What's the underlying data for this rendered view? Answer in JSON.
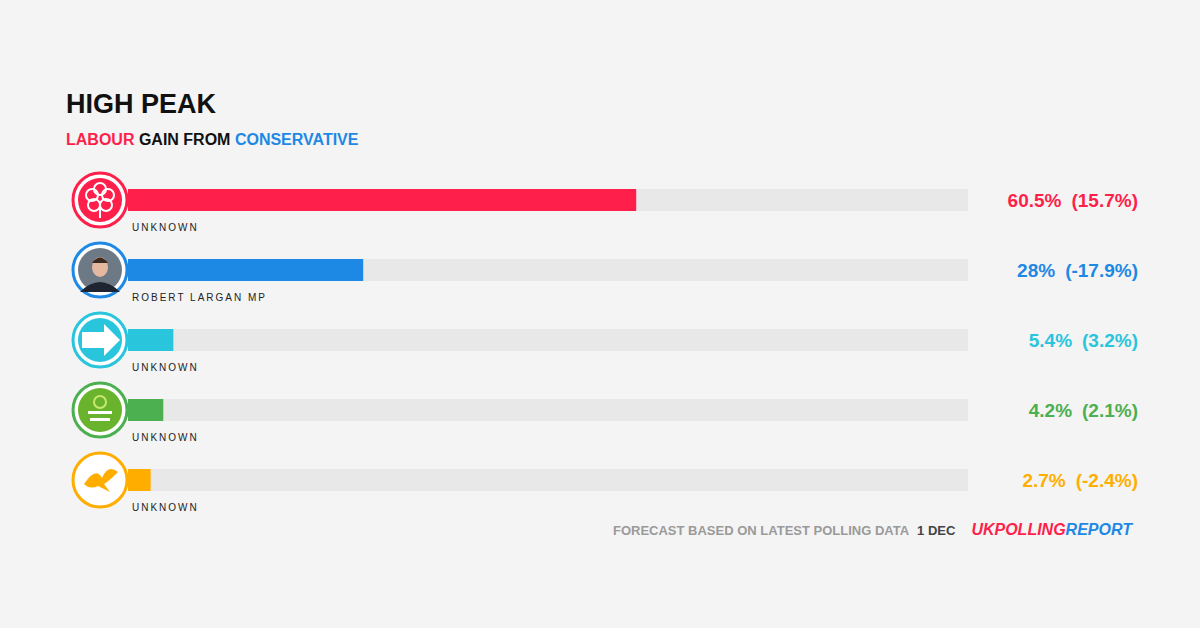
{
  "chart_data": {
    "type": "bar",
    "orientation": "horizontal",
    "title": "HIGH PEAK",
    "subtitle": "LABOUR GAIN FROM CONSERVATIVE",
    "categories": [
      "UNKNOWN",
      "ROBERT LARGAN MP",
      "UNKNOWN",
      "UNKNOWN",
      "UNKNOWN"
    ],
    "values": [
      60.5,
      28,
      5.4,
      4.2,
      2.7
    ],
    "value_labels": [
      "60.5%",
      "28%",
      "5.4%",
      "4.2%",
      "2.7%"
    ],
    "changes": [
      15.7,
      -17.9,
      3.2,
      2.1,
      -2.4
    ],
    "change_labels": [
      "(15.7%)",
      "(-17.9%)",
      "(3.2%)",
      "(2.1%)",
      "(-2.4%)"
    ],
    "colors": [
      "#ff1f4b",
      "#1e88e5",
      "#29c5dc",
      "#4caf50",
      "#ffae00"
    ],
    "xlim": [
      0,
      100
    ],
    "tick_labels": false,
    "grid": false,
    "data_labels": true,
    "annotations": [
      "FORECAST BASED ON LATEST POLLING DATA",
      "1 DEC"
    ],
    "source": [
      "UKPOLLING",
      "REPORT"
    ]
  }
}
